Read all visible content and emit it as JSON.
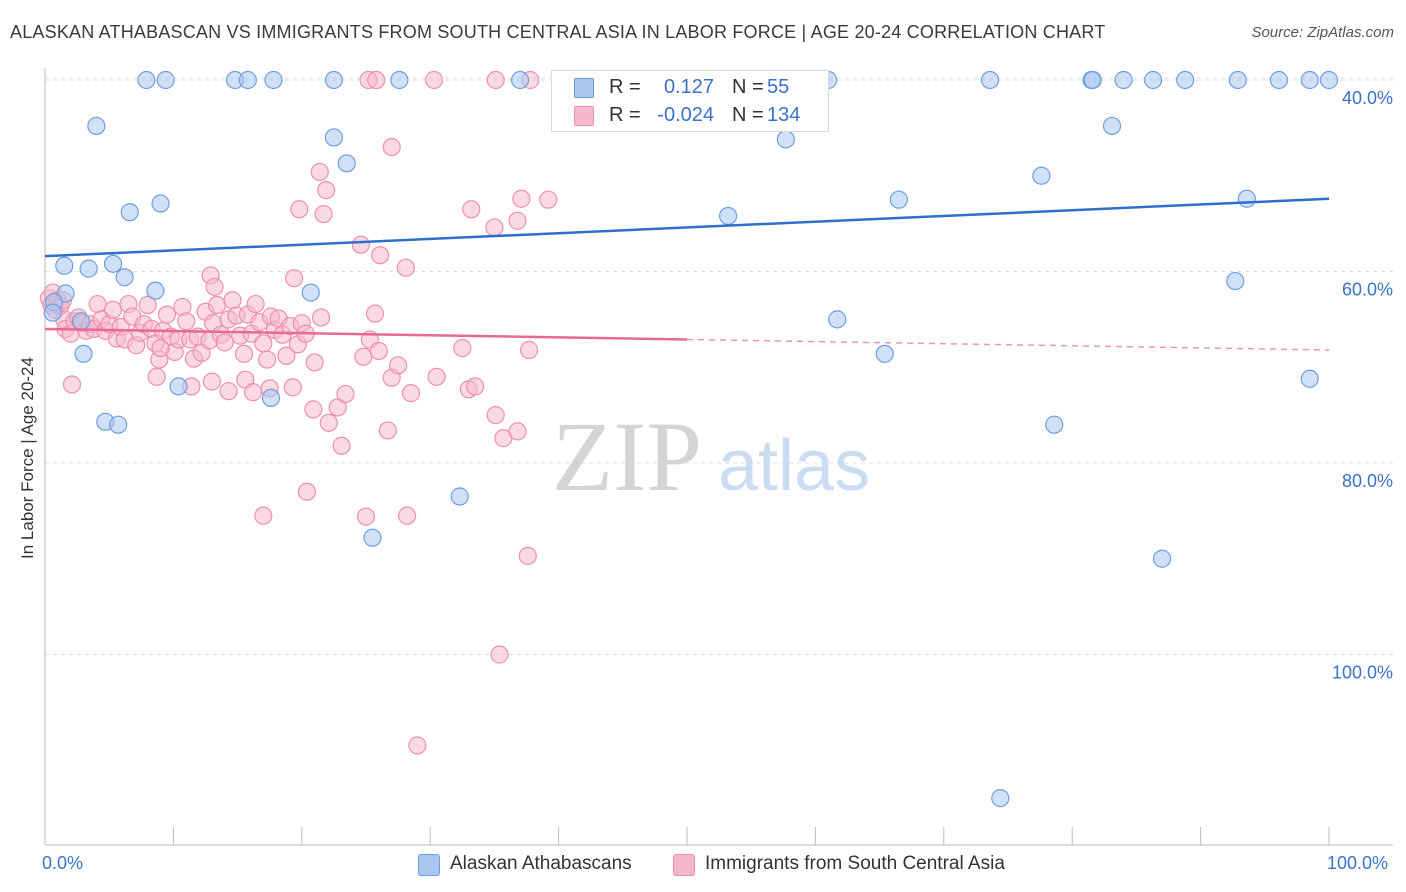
{
  "title": "ALASKAN ATHABASCAN VS IMMIGRANTS FROM SOUTH CENTRAL ASIA IN LABOR FORCE | AGE 20-24 CORRELATION CHART",
  "source": "Source: ZipAtlas.com",
  "watermark": {
    "zip": "ZIP",
    "atlas": "atlas"
  },
  "legend": {
    "series1": {
      "r_label": "R =",
      "r_value": "0.127",
      "n_label": "N =",
      "n_value": "55"
    },
    "series2": {
      "r_label": "R =",
      "r_value": "-0.024",
      "n_label": "N =",
      "n_value": "134"
    }
  },
  "bottom_legend": {
    "series1": "Alaskan Athabascans",
    "series2": "Immigrants from South Central Asia"
  },
  "axes": {
    "ylabel": "In Labor Force | Age 20-24",
    "x_left": "0.0%",
    "x_right": "100.0%",
    "y_ticks": [
      "100.0%",
      "80.0%",
      "60.0%",
      "40.0%"
    ]
  },
  "colors": {
    "blue_fill": "#a9c6f0",
    "blue_stroke": "#6d9ee0",
    "blue_line": "#2f6fcc",
    "pink_fill": "#f6b9cb",
    "pink_stroke": "#ee8fae",
    "pink_line": "#e66a94",
    "grid": "#dddddd",
    "axis_text": "#3a72c9"
  },
  "chart_data": {
    "type": "scatter",
    "title": "ALASKAN ATHABASCAN VS IMMIGRANTS FROM SOUTH CENTRAL ASIA IN LABOR FORCE | AGE 20-24 CORRELATION CHART",
    "xlabel": "",
    "ylabel": "In Labor Force | Age 20-24",
    "xlim": [
      0,
      100
    ],
    "ylim": [
      22,
      102
    ],
    "y_ticks": [
      40,
      60,
      80,
      100
    ],
    "grid": true,
    "legend_position": "top-center",
    "series": [
      {
        "name": "Alaskan Athabascans",
        "r": 0.127,
        "n": 55,
        "trend": {
          "x": [
            0,
            100
          ],
          "y": [
            81.6,
            87.6
          ]
        },
        "points": [
          [
            7.9,
            100
          ],
          [
            9.4,
            100
          ],
          [
            14.8,
            100
          ],
          [
            15.8,
            100
          ],
          [
            17.8,
            100
          ],
          [
            22.5,
            100
          ],
          [
            27.6,
            100
          ],
          [
            37,
            100
          ],
          [
            61,
            100
          ],
          [
            73.6,
            100
          ],
          [
            81.5,
            100
          ],
          [
            81.6,
            100
          ],
          [
            84,
            100
          ],
          [
            86.3,
            100
          ],
          [
            88.8,
            100
          ],
          [
            92.9,
            100
          ],
          [
            96.1,
            100
          ],
          [
            98.5,
            100
          ],
          [
            100,
            100
          ],
          [
            4,
            95.2
          ],
          [
            22.5,
            94
          ],
          [
            23.5,
            91.3
          ],
          [
            57.7,
            93.8
          ],
          [
            83.1,
            95.2
          ],
          [
            77.6,
            90
          ],
          [
            66.5,
            87.5
          ],
          [
            93.6,
            87.6
          ],
          [
            6.6,
            86.2
          ],
          [
            9,
            87.1
          ],
          [
            53.2,
            85.8
          ],
          [
            1.5,
            80.6
          ],
          [
            3.4,
            80.3
          ],
          [
            5.3,
            80.8
          ],
          [
            6.2,
            79.4
          ],
          [
            8.6,
            78
          ],
          [
            20.7,
            77.8
          ],
          [
            92.7,
            79
          ],
          [
            1.6,
            77.7
          ],
          [
            0.7,
            76.8
          ],
          [
            0.6,
            75.7
          ],
          [
            2.8,
            74.8
          ],
          [
            61.7,
            75
          ],
          [
            3,
            71.4
          ],
          [
            65.4,
            71.4
          ],
          [
            10.4,
            68
          ],
          [
            17.6,
            66.8
          ],
          [
            98.5,
            68.8
          ],
          [
            4.7,
            64.3
          ],
          [
            5.7,
            64
          ],
          [
            78.6,
            64
          ],
          [
            32.3,
            56.5
          ],
          [
            25.5,
            52.2
          ],
          [
            87,
            50
          ],
          [
            74.4,
            25
          ]
        ]
      },
      {
        "name": "Immigrants from South Central Asia",
        "r": -0.024,
        "n": 134,
        "trend": {
          "x": [
            0,
            50
          ],
          "y": [
            74.0,
            72.9
          ]
        },
        "trend_dashed": {
          "x": [
            50,
            100
          ],
          "y": [
            72.9,
            71.8
          ]
        },
        "points": [
          [
            25.2,
            100
          ],
          [
            25.8,
            100
          ],
          [
            30.3,
            100
          ],
          [
            35.1,
            100
          ],
          [
            37.8,
            100
          ],
          [
            27,
            93
          ],
          [
            21.4,
            90.4
          ],
          [
            21.9,
            88.5
          ],
          [
            19.8,
            86.5
          ],
          [
            21.7,
            86
          ],
          [
            33.2,
            86.5
          ],
          [
            39.2,
            87.5
          ],
          [
            37.1,
            87.6
          ],
          [
            36.8,
            85.3
          ],
          [
            35,
            84.6
          ],
          [
            24.6,
            82.8
          ],
          [
            26.1,
            81.7
          ],
          [
            28.1,
            80.4
          ],
          [
            0.3,
            77.2
          ],
          [
            0.5,
            76.5
          ],
          [
            0.6,
            77.8
          ],
          [
            0.8,
            76
          ],
          [
            1,
            77
          ],
          [
            1.2,
            76.4
          ],
          [
            1.4,
            77
          ],
          [
            1.5,
            75
          ],
          [
            1.6,
            74
          ],
          [
            2,
            73.5
          ],
          [
            2.3,
            74.8
          ],
          [
            2.6,
            75.2
          ],
          [
            2.9,
            74.6
          ],
          [
            3.2,
            73.8
          ],
          [
            3.5,
            74.5
          ],
          [
            3.8,
            74
          ],
          [
            4.1,
            76.6
          ],
          [
            4.4,
            75
          ],
          [
            4.7,
            73.8
          ],
          [
            5,
            74.5
          ],
          [
            5.3,
            76
          ],
          [
            5.6,
            73
          ],
          [
            5.9,
            74.2
          ],
          [
            6.2,
            72.9
          ],
          [
            6.5,
            76.6
          ],
          [
            6.8,
            75.3
          ],
          [
            7.1,
            72.3
          ],
          [
            7.4,
            73.6
          ],
          [
            7.7,
            74.5
          ],
          [
            8,
            76.5
          ],
          [
            8.3,
            74
          ],
          [
            8.6,
            72.5
          ],
          [
            8.9,
            70.8
          ],
          [
            9.2,
            73.8
          ],
          [
            9.5,
            75.5
          ],
          [
            9.8,
            73.2
          ],
          [
            10.1,
            71.6
          ],
          [
            10.4,
            72.9
          ],
          [
            10.7,
            76.3
          ],
          [
            11,
            74.8
          ],
          [
            11.3,
            72.9
          ],
          [
            11.6,
            70.9
          ],
          [
            11.9,
            73.2
          ],
          [
            12.2,
            71.5
          ],
          [
            12.5,
            75.8
          ],
          [
            12.8,
            72.8
          ],
          [
            13.1,
            74.6
          ],
          [
            13.4,
            76.5
          ],
          [
            13.7,
            73.4
          ],
          [
            14,
            72.6
          ],
          [
            14.3,
            75
          ],
          [
            14.6,
            77
          ],
          [
            14.9,
            75.4
          ],
          [
            15.2,
            73.3
          ],
          [
            15.5,
            71.4
          ],
          [
            15.8,
            75.5
          ],
          [
            16.1,
            73.5
          ],
          [
            16.4,
            76.6
          ],
          [
            16.7,
            74.7
          ],
          [
            17,
            72.5
          ],
          [
            17.3,
            70.8
          ],
          [
            17.6,
            75.3
          ],
          [
            17.9,
            73.9
          ],
          [
            18.2,
            75.1
          ],
          [
            18.5,
            73.4
          ],
          [
            18.8,
            71.2
          ],
          [
            19.1,
            74.3
          ],
          [
            19.4,
            79.3
          ],
          [
            19.7,
            72.4
          ],
          [
            20,
            74.6
          ],
          [
            20.3,
            73.5
          ],
          [
            21,
            70.5
          ],
          [
            21.5,
            75.2
          ],
          [
            22.8,
            65.8
          ],
          [
            23.4,
            67.2
          ],
          [
            24.8,
            71.1
          ],
          [
            25.3,
            72.9
          ],
          [
            25.7,
            75.6
          ],
          [
            26,
            71.7
          ],
          [
            27,
            68.9
          ],
          [
            27.5,
            70.2
          ],
          [
            28.5,
            67.3
          ],
          [
            2.1,
            68.2
          ],
          [
            8.7,
            69
          ],
          [
            9,
            72
          ],
          [
            11.4,
            68
          ],
          [
            13,
            68.5
          ],
          [
            14.3,
            67.5
          ],
          [
            15.6,
            68.7
          ],
          [
            16.2,
            67.4
          ],
          [
            17.5,
            67.8
          ],
          [
            19.3,
            67.9
          ],
          [
            20.9,
            65.6
          ],
          [
            22.1,
            64.2
          ],
          [
            23.1,
            61.8
          ],
          [
            26.7,
            63.4
          ],
          [
            28.2,
            54.5
          ],
          [
            17,
            54.5
          ],
          [
            20.4,
            57
          ],
          [
            25,
            54.4
          ],
          [
            30.5,
            69
          ],
          [
            33,
            67.7
          ],
          [
            35.1,
            65
          ],
          [
            35.7,
            62.6
          ],
          [
            36.8,
            63.3
          ],
          [
            37.6,
            50.3
          ],
          [
            35.4,
            40
          ],
          [
            29,
            30.5
          ],
          [
            37.7,
            71.8
          ],
          [
            33.5,
            68
          ],
          [
            32.5,
            72
          ],
          [
            12.9,
            79.6
          ],
          [
            13.2,
            78.4
          ]
        ]
      }
    ]
  }
}
